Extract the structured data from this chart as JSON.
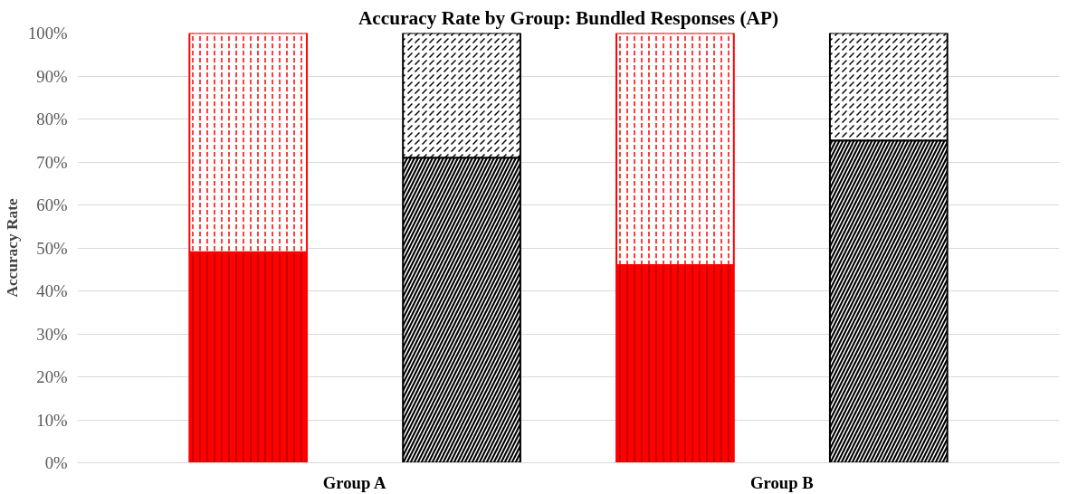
{
  "chart_data": {
    "type": "bar",
    "title": "Accuracy Rate by Group: Bundled Responses (AP)",
    "ylabel": "Accuracy Rate",
    "stacked": true,
    "categories": [
      "Group A",
      null,
      "Group B",
      null
    ],
    "series": [
      {
        "colors": [
          "#ff0000",
          "#000000",
          "#ff0000",
          "#000000"
        ],
        "values": [
          49,
          71,
          46,
          75
        ]
      },
      {
        "colors": [
          "#ff0000",
          "#000000",
          "#ff0000",
          "#000000"
        ],
        "values": [
          51,
          29,
          54,
          25
        ]
      }
    ],
    "ylim": [
      0,
      100
    ],
    "yticks": [
      {
        "value": 0,
        "label": "0%"
      },
      {
        "value": 10,
        "label": "10%"
      },
      {
        "value": 20,
        "label": "20%"
      },
      {
        "value": 30,
        "label": "30%"
      },
      {
        "value": 40,
        "label": "40%"
      },
      {
        "value": 50,
        "label": "50%"
      },
      {
        "value": 60,
        "label": "60%"
      },
      {
        "value": 70,
        "label": "70%"
      },
      {
        "value": 80,
        "label": "80%"
      },
      {
        "value": 90,
        "label": "90%"
      },
      {
        "value": 100,
        "label": "100%"
      }
    ],
    "grid": "y"
  }
}
